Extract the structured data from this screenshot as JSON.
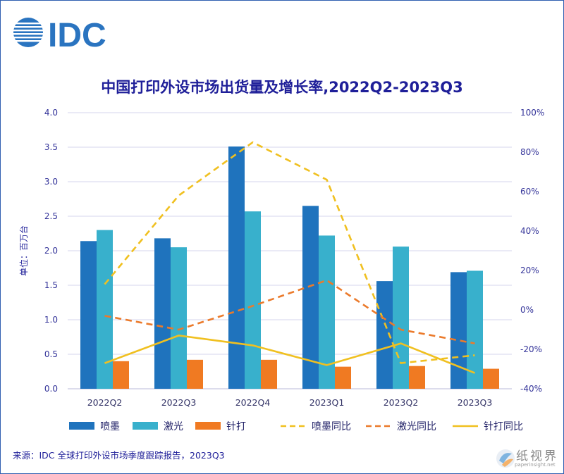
{
  "logo_text": "IDC",
  "chart_data": {
    "type": "bar",
    "title": "中国打印外设市场出货量及增长率,2022Q2-2023Q3",
    "categories": [
      "2022Q2",
      "2022Q3",
      "2022Q4",
      "2023Q1",
      "2023Q2",
      "2023Q3"
    ],
    "ylabel": "单位：百万台",
    "ylim": [
      0,
      4.0
    ],
    "yticks": [
      "0.0",
      "0.5",
      "1.0",
      "1.5",
      "2.0",
      "2.5",
      "3.0",
      "3.5",
      "4.0"
    ],
    "y2lim": [
      -40,
      100
    ],
    "y2ticks": [
      "-40%",
      "-20%",
      "0%",
      "20%",
      "40%",
      "60%",
      "80%",
      "100%"
    ],
    "grid": true,
    "legend_position": "bottom",
    "series": [
      {
        "name": "喷墨",
        "kind": "bar",
        "color": "#1f73bd",
        "values": [
          2.14,
          2.18,
          3.51,
          2.65,
          1.56,
          1.69
        ]
      },
      {
        "name": "激光",
        "kind": "bar",
        "color": "#38b0cc",
        "values": [
          2.3,
          2.05,
          2.57,
          2.22,
          2.06,
          1.71
        ]
      },
      {
        "name": "针打",
        "kind": "bar",
        "color": "#f07a22",
        "values": [
          0.4,
          0.42,
          0.42,
          0.32,
          0.33,
          0.29
        ]
      },
      {
        "name": "喷墨同比",
        "kind": "line",
        "style": "dashed",
        "color": "#f0c020",
        "values": [
          13,
          58,
          85,
          66,
          -27,
          -23
        ]
      },
      {
        "name": "激光同比",
        "kind": "line",
        "style": "dashed",
        "color": "#eb7a2b",
        "values": [
          -3,
          -10,
          2,
          15,
          -10,
          -17
        ]
      },
      {
        "name": "针打同比",
        "kind": "line",
        "style": "solid",
        "color": "#f0c020",
        "values": [
          -27,
          -13,
          -18,
          -28,
          -17,
          -32
        ]
      }
    ]
  },
  "source": "来源：IDC 全球打印外设市场季度跟踪报告，2023Q3",
  "watermark": {
    "text": "纸视界",
    "url": "paperinsight.net"
  }
}
